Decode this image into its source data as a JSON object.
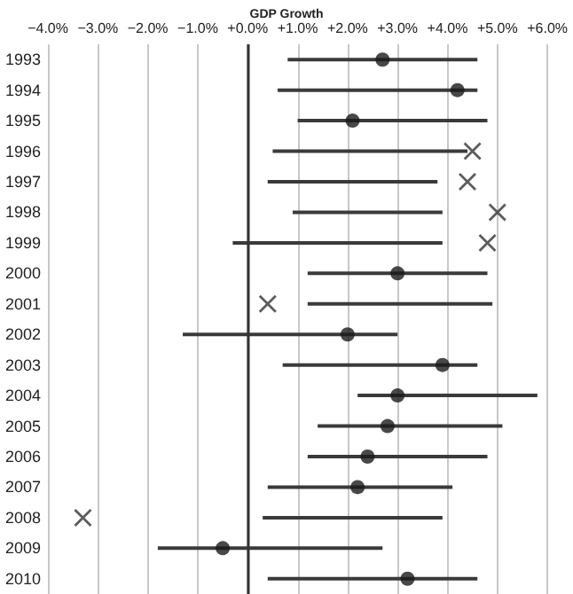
{
  "chart_data": {
    "type": "bar",
    "title": "GDP Growth",
    "orientation": "horizontal",
    "categories": [
      "1993",
      "1994",
      "1995",
      "1996",
      "1997",
      "1998",
      "1999",
      "2000",
      "2001",
      "2002",
      "2003",
      "2004",
      "2005",
      "2006",
      "2007",
      "2008",
      "2009",
      "2010"
    ],
    "xlim": [
      -4,
      6
    ],
    "xticks": [
      {
        "value": -4,
        "label": "−4.0%"
      },
      {
        "value": -3,
        "label": "−3.0%"
      },
      {
        "value": -2,
        "label": "−2.0%"
      },
      {
        "value": -1,
        "label": "−1.0%"
      },
      {
        "value": 0,
        "label": "+0.0%"
      },
      {
        "value": 1,
        "label": "+1.0%"
      },
      {
        "value": 2,
        "label": "+2.0%"
      },
      {
        "value": 3,
        "label": "+3.0%"
      },
      {
        "value": 4,
        "label": "+4.0%"
      },
      {
        "value": 5,
        "label": "+5.0%"
      },
      {
        "value": 6,
        "label": "+6.0%"
      }
    ],
    "grid": "x",
    "ref_lines": [
      {
        "axis": "x",
        "value": 0,
        "color": "#333333"
      }
    ],
    "series": [
      {
        "color": "#3a3a3a",
        "base": [
          0.8,
          0.6,
          1.0,
          0.5,
          0.4,
          0.9,
          -0.3,
          1.2,
          1.2,
          -1.3,
          0.7,
          2.2,
          1.4,
          1.2,
          0.4,
          0.3,
          -1.8,
          0.4
        ],
        "values": [
          3.8,
          4.0,
          3.8,
          3.9,
          3.4,
          3.0,
          4.2,
          3.6,
          3.7,
          4.3,
          3.9,
          3.6,
          3.7,
          3.6,
          3.7,
          3.6,
          4.5,
          4.2
        ]
      },
      {
        "type": "scatter",
        "marker": "circle",
        "color": "#1a1a1a",
        "values": [
          2.7,
          4.2,
          2.1,
          null,
          null,
          null,
          null,
          3.0,
          null,
          2.0,
          3.9,
          3.0,
          2.8,
          2.4,
          2.2,
          null,
          -0.5,
          3.2
        ]
      },
      {
        "type": "scatter",
        "marker": "cross",
        "color": "#333333",
        "values": [
          null,
          null,
          null,
          4.5,
          4.4,
          5.0,
          4.8,
          null,
          0.4,
          null,
          null,
          null,
          null,
          null,
          null,
          -3.3,
          null,
          null
        ]
      }
    ]
  }
}
